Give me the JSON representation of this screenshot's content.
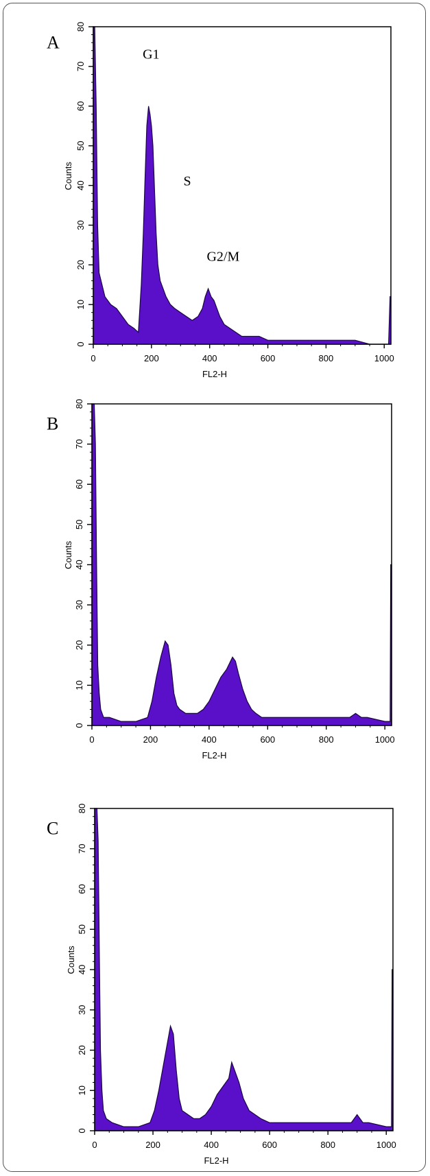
{
  "chart_data": [
    {
      "type": "area",
      "panel": "A",
      "xlabel": "FL2-H",
      "ylabel": "Counts",
      "xlim": [
        0,
        1023
      ],
      "ylim": [
        0,
        80
      ],
      "x_ticks": [
        0,
        200,
        400,
        600,
        800,
        1000
      ],
      "y_ticks": [
        0,
        10,
        20,
        30,
        40,
        50,
        60,
        70,
        80
      ],
      "fill_color": "#5a0fc8",
      "annotations": [
        {
          "text": "G1",
          "x": 170,
          "y": 72
        },
        {
          "text": "S",
          "x": 310,
          "y": 40
        },
        {
          "text": "G2/M",
          "x": 390,
          "y": 21
        }
      ],
      "x": [
        0,
        5,
        10,
        15,
        20,
        30,
        40,
        60,
        80,
        100,
        120,
        140,
        155,
        165,
        172,
        178,
        184,
        190,
        195,
        200,
        205,
        210,
        216,
        222,
        230,
        240,
        250,
        265,
        280,
        300,
        320,
        340,
        360,
        375,
        385,
        395,
        405,
        415,
        425,
        435,
        450,
        470,
        490,
        510,
        540,
        570,
        600,
        640,
        680,
        720,
        760,
        800,
        850,
        900,
        950,
        1000,
        1015,
        1020,
        1023
      ],
      "values": [
        80,
        80,
        60,
        30,
        18,
        15,
        12,
        10,
        9,
        7,
        5,
        4,
        3,
        15,
        28,
        42,
        55,
        60,
        58,
        55,
        50,
        40,
        28,
        20,
        16,
        14,
        12,
        10,
        9,
        8,
        7,
        6,
        7,
        9,
        12,
        14,
        12,
        11,
        9,
        7,
        5,
        4,
        3,
        2,
        2,
        2,
        1,
        1,
        1,
        1,
        1,
        1,
        1,
        1,
        0,
        0,
        0,
        12,
        12
      ]
    },
    {
      "type": "area",
      "panel": "B",
      "xlabel": "FL2-H",
      "ylabel": "Counts",
      "xlim": [
        0,
        1023
      ],
      "ylim": [
        0,
        80
      ],
      "x_ticks": [
        0,
        200,
        400,
        600,
        800,
        1000
      ],
      "y_ticks": [
        0,
        10,
        20,
        30,
        40,
        50,
        60,
        70,
        80
      ],
      "fill_color": "#5a0fc8",
      "x": [
        0,
        4,
        8,
        12,
        16,
        20,
        25,
        30,
        40,
        60,
        100,
        150,
        190,
        205,
        220,
        235,
        250,
        260,
        270,
        280,
        290,
        300,
        320,
        340,
        360,
        380,
        400,
        420,
        440,
        460,
        480,
        490,
        500,
        515,
        530,
        545,
        560,
        580,
        620,
        700,
        800,
        880,
        900,
        920,
        940,
        1000,
        1018,
        1020,
        1023
      ],
      "values": [
        80,
        80,
        80,
        70,
        40,
        15,
        8,
        4,
        2,
        2,
        1,
        1,
        2,
        6,
        12,
        17,
        21,
        20,
        15,
        8,
        5,
        4,
        3,
        3,
        3,
        4,
        6,
        9,
        12,
        14,
        17,
        16,
        13,
        9,
        6,
        4,
        3,
        2,
        2,
        2,
        2,
        2,
        3,
        2,
        2,
        1,
        1,
        40,
        40
      ]
    },
    {
      "type": "area",
      "panel": "C",
      "xlabel": "FL2-H",
      "ylabel": "Counts",
      "xlim": [
        0,
        1023
      ],
      "ylim": [
        0,
        80
      ],
      "x_ticks": [
        0,
        200,
        400,
        600,
        800,
        1000
      ],
      "y_ticks": [
        0,
        10,
        20,
        30,
        40,
        50,
        60,
        70,
        80
      ],
      "fill_color": "#5a0fc8",
      "x": [
        0,
        4,
        8,
        12,
        16,
        20,
        25,
        30,
        40,
        60,
        100,
        150,
        190,
        205,
        220,
        235,
        250,
        260,
        270,
        280,
        290,
        300,
        320,
        340,
        360,
        380,
        400,
        420,
        440,
        460,
        470,
        480,
        495,
        510,
        530,
        550,
        570,
        600,
        650,
        700,
        800,
        880,
        900,
        920,
        940,
        1000,
        1018,
        1020,
        1023
      ],
      "values": [
        80,
        80,
        80,
        72,
        45,
        20,
        10,
        5,
        3,
        2,
        1,
        1,
        2,
        5,
        10,
        16,
        22,
        26,
        24,
        15,
        8,
        5,
        4,
        3,
        3,
        4,
        6,
        9,
        11,
        13,
        17,
        15,
        12,
        8,
        5,
        4,
        3,
        2,
        2,
        2,
        2,
        2,
        4,
        2,
        2,
        1,
        1,
        40,
        40
      ]
    }
  ]
}
